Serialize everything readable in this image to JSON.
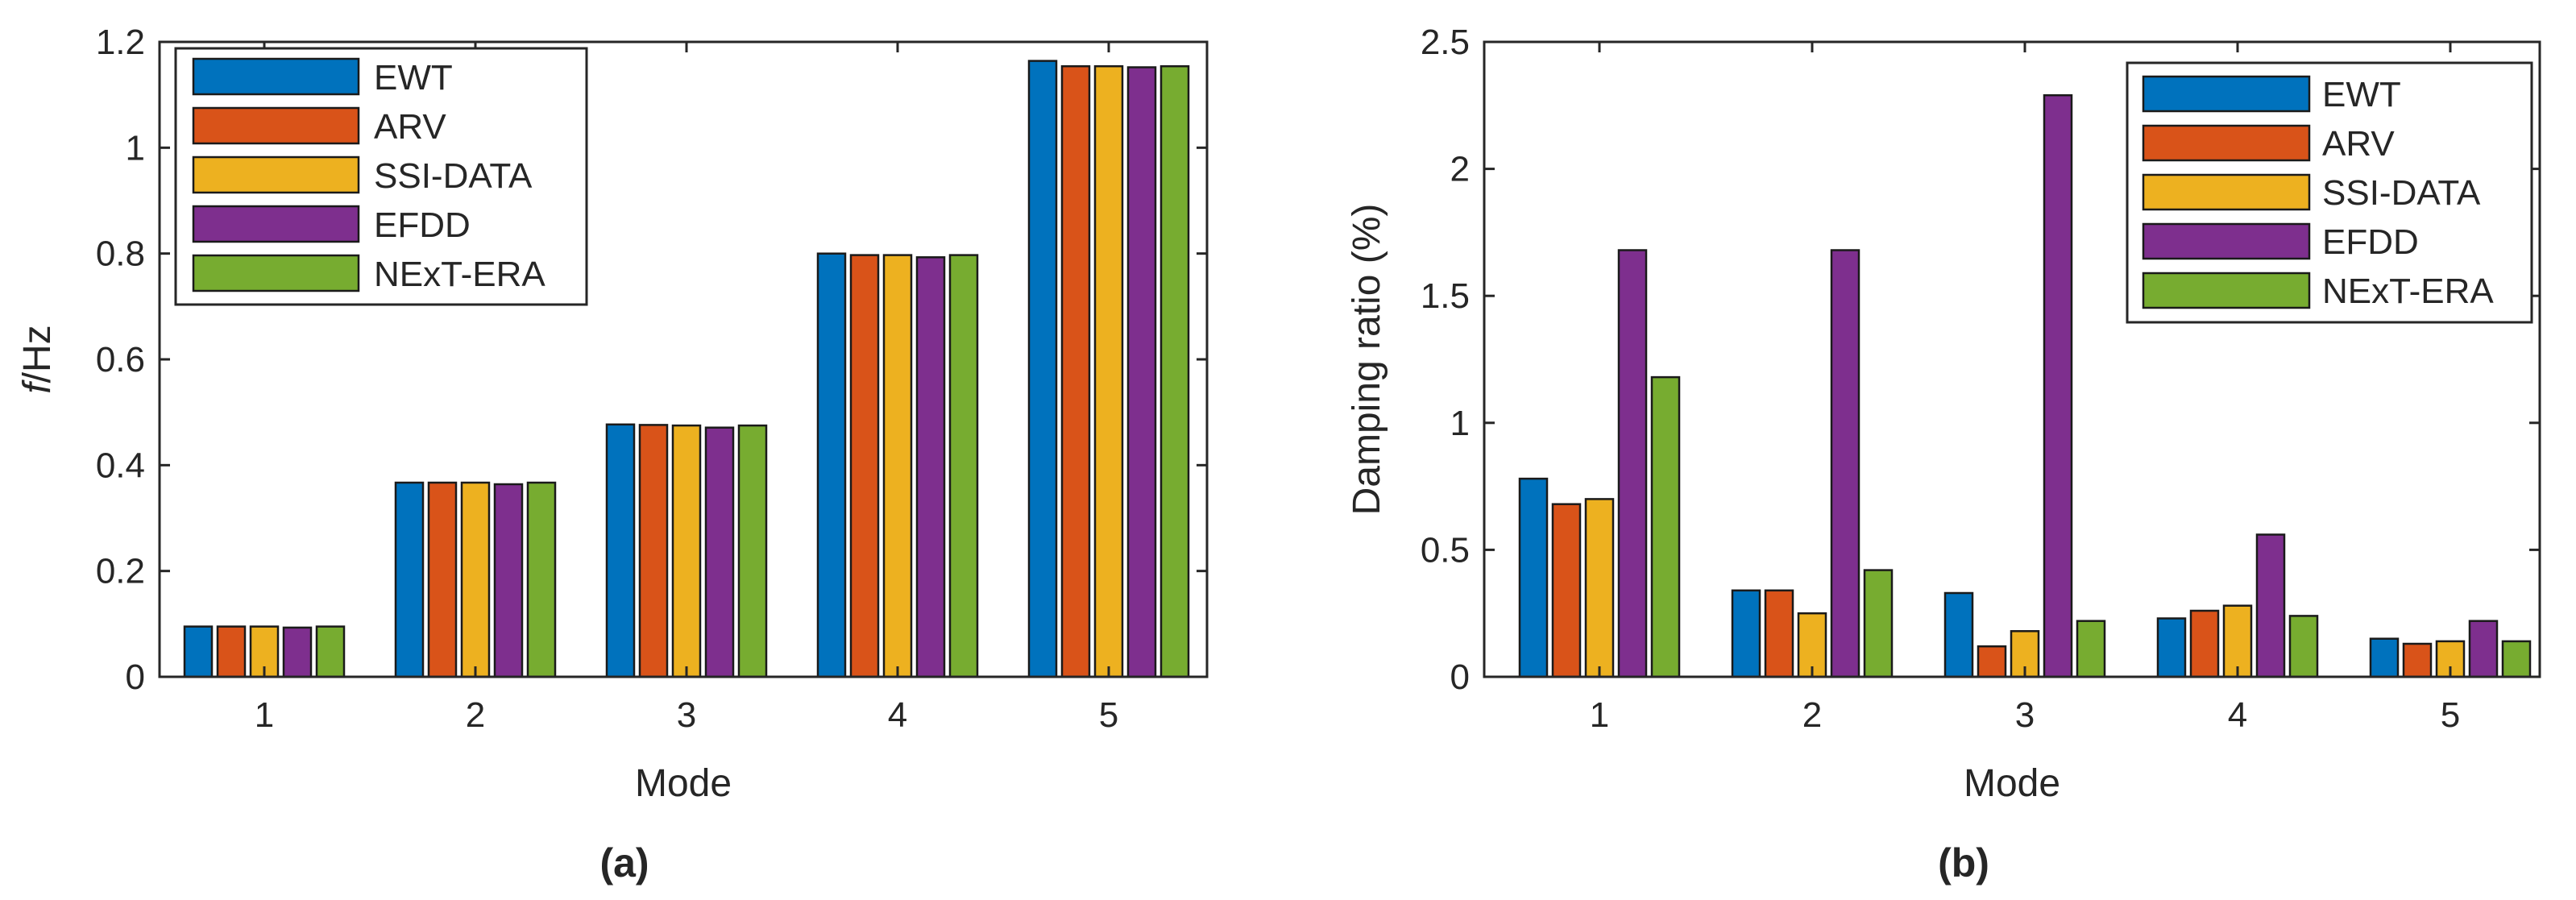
{
  "series_colors": [
    "#0072BD",
    "#D95319",
    "#EDB120",
    "#7E2F8E",
    "#77AC30"
  ],
  "chart_data": [
    {
      "type": "bar",
      "caption": "(a)",
      "categories": [
        "1",
        "2",
        "3",
        "4",
        "5"
      ],
      "series": [
        {
          "name": "EWT",
          "values": [
            0.095,
            0.367,
            0.477,
            0.8,
            1.164
          ]
        },
        {
          "name": "ARV",
          "values": [
            0.095,
            0.367,
            0.476,
            0.797,
            1.154
          ]
        },
        {
          "name": "SSI-DATA",
          "values": [
            0.095,
            0.367,
            0.475,
            0.797,
            1.154
          ]
        },
        {
          "name": "EFDD",
          "values": [
            0.093,
            0.364,
            0.471,
            0.793,
            1.152
          ]
        },
        {
          "name": "NExT-ERA",
          "values": [
            0.095,
            0.367,
            0.475,
            0.797,
            1.154
          ]
        }
      ],
      "title": "",
      "xlabel": "Mode",
      "ylabel_italic": "f",
      "ylabel_rest": "/Hz",
      "ylim": [
        0,
        1.2
      ],
      "yticks": [
        "0",
        "0.2",
        "0.4",
        "0.6",
        "0.8",
        "1",
        "1.2"
      ],
      "legend_position": "top-left",
      "grid": false
    },
    {
      "type": "bar",
      "caption": "(b)",
      "categories": [
        "1",
        "2",
        "3",
        "4",
        "5"
      ],
      "series": [
        {
          "name": "EWT",
          "values": [
            0.78,
            0.34,
            0.33,
            0.23,
            0.15
          ]
        },
        {
          "name": "ARV",
          "values": [
            0.68,
            0.34,
            0.12,
            0.26,
            0.13
          ]
        },
        {
          "name": "SSI-DATA",
          "values": [
            0.7,
            0.25,
            0.18,
            0.28,
            0.14
          ]
        },
        {
          "name": "EFDD",
          "values": [
            1.68,
            1.68,
            2.29,
            0.56,
            0.22
          ]
        },
        {
          "name": "NExT-ERA",
          "values": [
            1.18,
            0.42,
            0.22,
            0.24,
            0.14
          ]
        }
      ],
      "title": "",
      "xlabel": "Mode",
      "ylabel": "Damping ratio (%)",
      "ylim": [
        0,
        2.5
      ],
      "yticks": [
        "0",
        "0.5",
        "1",
        "1.5",
        "2",
        "2.5"
      ],
      "legend_position": "top-right",
      "grid": false
    }
  ]
}
